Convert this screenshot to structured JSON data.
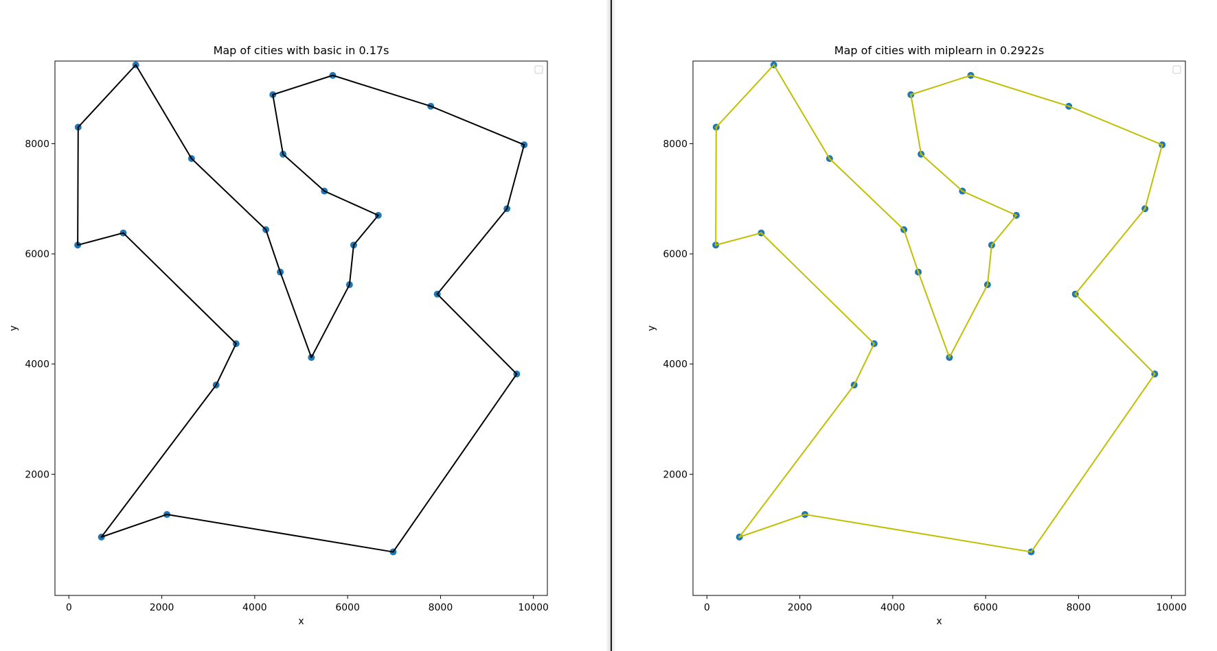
{
  "colors": {
    "point": "#1f77b4",
    "route_basic": "#000000",
    "route_miplearn": "#bfbf00"
  },
  "legend_placement": "upper right (empty)",
  "chart_data": [
    {
      "type": "line",
      "title": "Map of cities with basic in 0.17s",
      "xlabel": "x",
      "ylabel": "y",
      "xlim": [
        -300,
        10300
      ],
      "ylim": [
        -200,
        9500
      ],
      "xticks": [
        "0",
        "2000",
        "4000",
        "6000",
        "8000",
        "10000"
      ],
      "yticks": [
        "2000",
        "4000",
        "6000",
        "8000"
      ],
      "grid": false,
      "legend": "upper right (empty)",
      "series": [
        {
          "route_color": "#000000",
          "marker_color": "#1f77b4",
          "points": [
            [
              1440,
              9430
            ],
            [
              4390,
              8890
            ],
            [
              4610,
              7810
            ],
            [
              5500,
              7140
            ],
            [
              6660,
              6700
            ],
            [
              6130,
              6160
            ],
            [
              6040,
              5440
            ],
            [
              5220,
              4120
            ],
            [
              4550,
              5670
            ],
            [
              4240,
              6440
            ],
            [
              2640,
              7730
            ],
            [
              1440,
              9430
            ]
          ]
        }
      ],
      "cities": [
        [
          1440,
          9430
        ],
        [
          5680,
          9240
        ],
        [
          7790,
          8680
        ],
        [
          9800,
          7980
        ],
        [
          9430,
          6820
        ],
        [
          7930,
          5270
        ],
        [
          9640,
          3820
        ],
        [
          6980,
          590
        ],
        [
          2110,
          1270
        ],
        [
          700,
          860
        ],
        [
          3170,
          3620
        ],
        [
          3600,
          4370
        ],
        [
          1170,
          6380
        ],
        [
          190,
          6160
        ],
        [
          200,
          8300
        ],
        [
          4390,
          8890
        ],
        [
          4610,
          7810
        ],
        [
          5500,
          7140
        ],
        [
          6660,
          6700
        ],
        [
          6130,
          6160
        ],
        [
          6040,
          5440
        ],
        [
          5220,
          4120
        ],
        [
          4550,
          5670
        ],
        [
          4240,
          6440
        ],
        [
          2640,
          7730
        ]
      ],
      "tour": [
        [
          1440,
          9430
        ],
        [
          200,
          8300
        ],
        [
          190,
          6160
        ],
        [
          1170,
          6380
        ],
        [
          3600,
          4370
        ],
        [
          3170,
          3620
        ],
        [
          700,
          860
        ],
        [
          2110,
          1270
        ],
        [
          6980,
          590
        ],
        [
          9640,
          3820
        ],
        [
          7930,
          5270
        ],
        [
          9430,
          6820
        ],
        [
          9800,
          7980
        ],
        [
          7790,
          8680
        ],
        [
          5680,
          9240
        ],
        [
          4390,
          8890
        ],
        [
          4610,
          7810
        ],
        [
          5500,
          7140
        ],
        [
          6660,
          6700
        ],
        [
          6130,
          6160
        ],
        [
          6040,
          5440
        ],
        [
          5220,
          4120
        ],
        [
          4550,
          5670
        ],
        [
          4240,
          6440
        ],
        [
          2640,
          7730
        ],
        [
          1440,
          9430
        ]
      ]
    },
    {
      "type": "line",
      "title": "Map of cities with miplearn in 0.2922s",
      "xlabel": "x",
      "ylabel": "y",
      "xlim": [
        -300,
        10300
      ],
      "ylim": [
        -200,
        9500
      ],
      "xticks": [
        "0",
        "2000",
        "4000",
        "6000",
        "8000",
        "10000"
      ],
      "yticks": [
        "2000",
        "4000",
        "6000",
        "8000"
      ],
      "grid": false,
      "legend": "upper right (empty)",
      "cities": [
        [
          1440,
          9430
        ],
        [
          5680,
          9240
        ],
        [
          7790,
          8680
        ],
        [
          9800,
          7980
        ],
        [
          9430,
          6820
        ],
        [
          7930,
          5270
        ],
        [
          9640,
          3820
        ],
        [
          6980,
          590
        ],
        [
          2110,
          1270
        ],
        [
          700,
          860
        ],
        [
          3170,
          3620
        ],
        [
          3600,
          4370
        ],
        [
          1170,
          6380
        ],
        [
          190,
          6160
        ],
        [
          200,
          8300
        ],
        [
          4390,
          8890
        ],
        [
          4610,
          7810
        ],
        [
          5500,
          7140
        ],
        [
          6660,
          6700
        ],
        [
          6130,
          6160
        ],
        [
          6040,
          5440
        ],
        [
          5220,
          4120
        ],
        [
          4550,
          5670
        ],
        [
          4240,
          6440
        ],
        [
          2640,
          7730
        ]
      ],
      "tour": [
        [
          1440,
          9430
        ],
        [
          200,
          8300
        ],
        [
          190,
          6160
        ],
        [
          1170,
          6380
        ],
        [
          3600,
          4370
        ],
        [
          3170,
          3620
        ],
        [
          700,
          860
        ],
        [
          2110,
          1270
        ],
        [
          6980,
          590
        ],
        [
          9640,
          3820
        ],
        [
          7930,
          5270
        ],
        [
          9430,
          6820
        ],
        [
          9800,
          7980
        ],
        [
          7790,
          8680
        ],
        [
          5680,
          9240
        ],
        [
          4390,
          8890
        ],
        [
          4610,
          7810
        ],
        [
          5500,
          7140
        ],
        [
          6660,
          6700
        ],
        [
          6130,
          6160
        ],
        [
          6040,
          5440
        ],
        [
          5220,
          4120
        ],
        [
          4550,
          5670
        ],
        [
          4240,
          6440
        ],
        [
          2640,
          7730
        ],
        [
          1440,
          9430
        ]
      ]
    }
  ]
}
